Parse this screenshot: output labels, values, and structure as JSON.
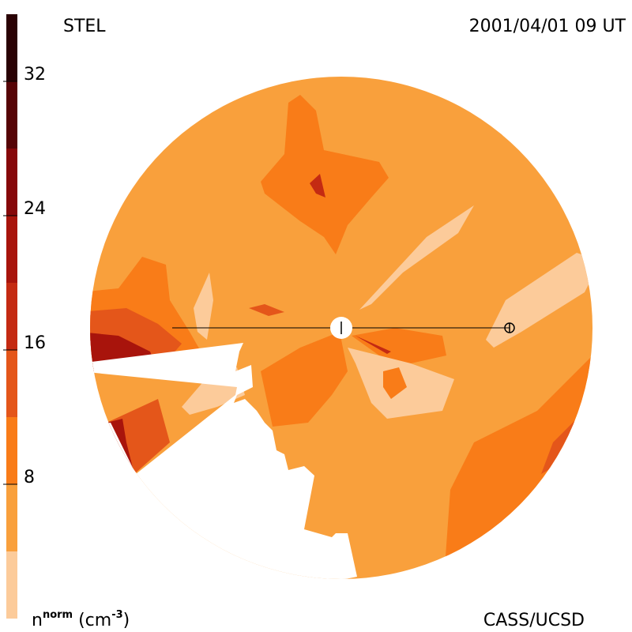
{
  "chart_data": {
    "type": "contour",
    "title": "STEL",
    "subtitle": "2001/04/01 09 UT",
    "credit": "CASS/UCSD",
    "colorbar_label": [
      "n",
      "norm",
      " (cm",
      "-3",
      ")"
    ],
    "levels": [
      0,
      4,
      8,
      12,
      16,
      20,
      24,
      28,
      32,
      36
    ],
    "colors": [
      "#fccb9a",
      "#f9a03c",
      "#f97c18",
      "#e4561a",
      "#c42a12",
      "#a8140c",
      "#86080a",
      "#560406",
      "#2a0204"
    ],
    "ylim": [
      0,
      36
    ],
    "yticks": [
      8,
      16,
      24,
      32
    ]
  }
}
